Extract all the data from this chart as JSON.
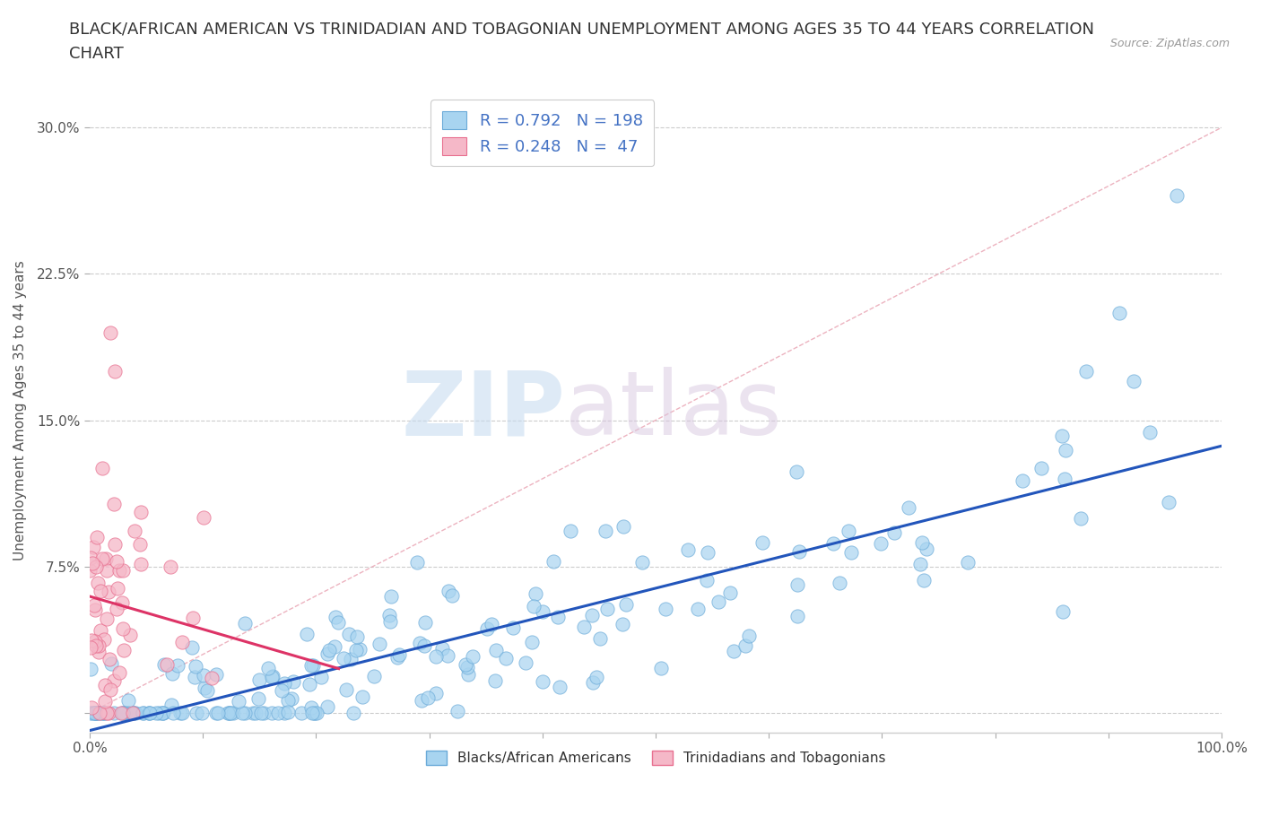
{
  "title_line1": "BLACK/AFRICAN AMERICAN VS TRINIDADIAN AND TOBAGONIAN UNEMPLOYMENT AMONG AGES 35 TO 44 YEARS CORRELATION",
  "title_line2": "CHART",
  "source_text": "Source: ZipAtlas.com",
  "ylabel": "Unemployment Among Ages 35 to 44 years",
  "xlim": [
    0,
    1.0
  ],
  "ylim": [
    -0.01,
    0.32
  ],
  "x_ticks": [
    0.0,
    0.1,
    0.2,
    0.3,
    0.4,
    0.5,
    0.6,
    0.7,
    0.8,
    0.9,
    1.0
  ],
  "y_ticks": [
    0.0,
    0.075,
    0.15,
    0.225,
    0.3
  ],
  "y_tick_labels": [
    "",
    "7.5%",
    "15.0%",
    "22.5%",
    "30.0%"
  ],
  "blue_color": "#A8D4F0",
  "blue_edge_color": "#6AAAD8",
  "pink_color": "#F5B8C8",
  "pink_edge_color": "#E87090",
  "blue_line_color": "#2255BB",
  "pink_line_color": "#DD3366",
  "diag_line_color": "#E8A0B0",
  "legend_R_blue": "R = 0.792",
  "legend_N_blue": "N = 198",
  "legend_R_pink": "R = 0.248",
  "legend_N_pink": "N =  47",
  "watermark_ZIP": "ZIP",
  "watermark_atlas": "atlas",
  "title_fontsize": 13,
  "axis_label_fontsize": 11,
  "tick_fontsize": 11,
  "blue_N": 198,
  "pink_N": 47,
  "blue_R": 0.792,
  "pink_R": 0.248,
  "background_color": "#ffffff"
}
